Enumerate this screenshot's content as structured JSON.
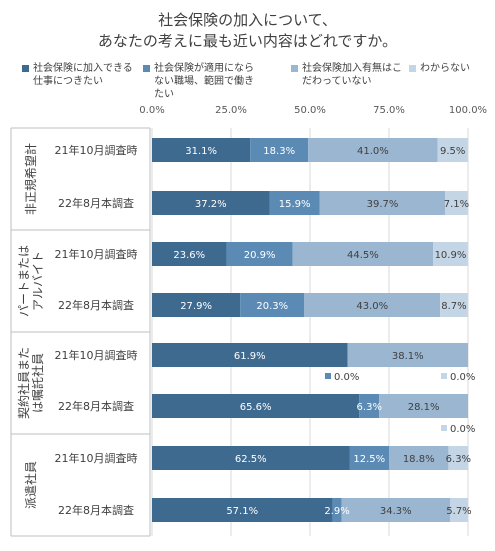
{
  "title": [
    "社会保険の加入について、",
    "あなたの考えに最も近い内容はどれですか。"
  ],
  "colors": [
    "#3f6a90",
    "#5b8bb5",
    "#9bb6d1",
    "#c4d5e6"
  ],
  "chart_data": {
    "type": "bar",
    "orientation": "horizontal",
    "stacked": true,
    "percent_stacked": true,
    "xlim": [
      0,
      100
    ],
    "x_ticks": [
      "0.0%",
      "25.0%",
      "50.0%",
      "75.0%",
      "100.0%"
    ],
    "grid": true,
    "legend_position": "top",
    "groups": [
      {
        "label": "非正規希望計",
        "categories": [
          "21年10月調査時",
          "22年8月本調査"
        ]
      },
      {
        "label": "パートまたは\nアルバイト",
        "categories": [
          "21年10月調査時",
          "22年8月本調査"
        ]
      },
      {
        "label": "契約社員また\nは嘱託社員",
        "categories": [
          "21年10月調査時",
          "22年8月本調査"
        ]
      },
      {
        "label": "派遣社員",
        "categories": [
          "21年10月調査時",
          "22年8月本調査"
        ]
      }
    ],
    "series": [
      {
        "name": "社会保険に加入できる仕事につきたい",
        "values": [
          31.1,
          37.2,
          23.6,
          27.9,
          61.9,
          65.6,
          62.5,
          57.1
        ],
        "labels": [
          "31.1%",
          "37.2%",
          "23.6%",
          "27.9%",
          "61.9%",
          "65.6%",
          "62.5%",
          "57.1%"
        ]
      },
      {
        "name": "社会保険が適用にならない職場、範囲で働きたい",
        "values": [
          18.3,
          15.9,
          20.9,
          20.3,
          0.0,
          6.3,
          12.5,
          2.9
        ],
        "labels": [
          "18.3%",
          "15.9%",
          "20.9%",
          "20.3%",
          "0.0%",
          "6.3%",
          "12.5%",
          "2.9%"
        ]
      },
      {
        "name": "社会保険加入有無はこだわっていない",
        "values": [
          41.0,
          39.7,
          44.5,
          43.0,
          38.1,
          28.1,
          18.8,
          34.3
        ],
        "labels": [
          "41.0%",
          "39.7%",
          "44.5%",
          "43.0%",
          "38.1%",
          "28.1%",
          "18.8%",
          "34.3%"
        ]
      },
      {
        "name": "わからない",
        "values": [
          9.5,
          7.1,
          10.9,
          8.7,
          0.0,
          0.0,
          6.3,
          5.7
        ],
        "labels": [
          "9.5%",
          "7.1%",
          "10.9%",
          "8.7%",
          "0.0%",
          "0.0%",
          "6.3%",
          "5.7%"
        ]
      }
    ]
  }
}
